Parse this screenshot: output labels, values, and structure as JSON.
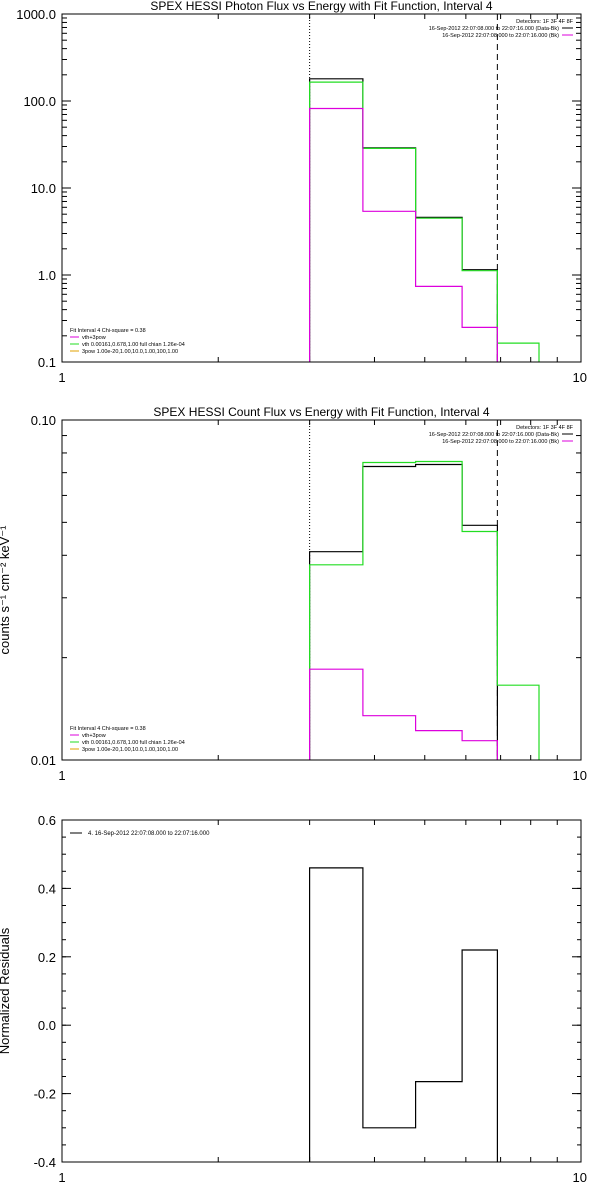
{
  "colors": {
    "black": "#000000",
    "magenta": "#dd00dd",
    "green": "#22dd22",
    "orange": "#e0a000"
  },
  "chart_data": [
    {
      "type": "line",
      "title": "SPEX HESSI Photon Flux vs Energy with Fit Function, Interval 4",
      "xlabel": "",
      "ylabel": "",
      "xscale": "log",
      "yscale": "log",
      "xlim": [
        1,
        10
      ],
      "ylim": [
        0.1,
        1000
      ],
      "x_ticks": [
        1,
        10
      ],
      "x_tick_labels": [
        "1",
        "10"
      ],
      "y_ticks": [
        0.1,
        1,
        10,
        100,
        1000
      ],
      "y_tick_labels": [
        "0.1",
        "1.0",
        "10.0",
        "100.0",
        "1000.0"
      ],
      "vlines": [
        {
          "x": 3.0,
          "style": "dotted"
        },
        {
          "x": 6.9,
          "style": "dashed"
        }
      ],
      "legend_top": {
        "placement": "top-right",
        "lines": [
          {
            "text": "Detectors: 1F 3F 4F 8F",
            "color": ""
          },
          {
            "text": "16-Sep-2012 22:07:08.000 to 22:07:16.000 (Data-Bk)",
            "color": "#000000"
          },
          {
            "text": "16-Sep-2012 22:07:08.000 to 22:07:16.000 (Bk)",
            "color": "#dd00dd"
          }
        ]
      },
      "legend_bottom": {
        "placement": "bottom-left",
        "lines": [
          {
            "text": "Fit Interval 4   Chi-square = 0.38",
            "color": ""
          },
          {
            "text": "vth+3pow",
            "color": "#dd00dd"
          },
          {
            "text": "vth 0.00161,0.678,1.00   full chian 1.26e-04",
            "color": "#22dd22"
          },
          {
            "text": "3pow 1.00e-20,1.00,10.0,1.00,100,1.00",
            "color": "#e0a000"
          }
        ]
      },
      "series": [
        {
          "color": "#000000",
          "edges": [
            3.0,
            3.8,
            4.8,
            5.9,
            6.9
          ],
          "values": [
            180,
            29,
            4.6,
            1.15
          ]
        },
        {
          "color": "#22dd22",
          "edges": [
            3.0,
            3.8,
            4.8,
            5.9,
            6.9,
            8.3
          ],
          "values": [
            165,
            28.5,
            4.5,
            1.12,
            0.165
          ]
        },
        {
          "color": "#dd00dd",
          "edges": [
            3.0,
            3.8,
            4.8,
            5.9,
            6.9
          ],
          "values": [
            82,
            5.4,
            0.74,
            0.25
          ]
        }
      ]
    },
    {
      "type": "line",
      "title": "SPEX HESSI Count Flux vs Energy with Fit Function, Interval 4",
      "xlabel": "",
      "ylabel": "counts s⁻¹ cm⁻² keV⁻¹",
      "xscale": "log",
      "yscale": "log",
      "xlim": [
        1,
        10
      ],
      "ylim": [
        0.01,
        0.1
      ],
      "x_ticks": [
        1,
        10
      ],
      "x_tick_labels": [
        "1",
        "10"
      ],
      "y_ticks": [
        0.01,
        0.1
      ],
      "y_tick_labels": [
        "0.01",
        "0.10"
      ],
      "vlines": [
        {
          "x": 3.0,
          "style": "dotted"
        },
        {
          "x": 6.9,
          "style": "dashed"
        }
      ],
      "legend_top": {
        "placement": "top-right",
        "lines": [
          {
            "text": "Detectors: 1F 3F 4F 8F",
            "color": ""
          },
          {
            "text": "16-Sep-2012 22:07:08.000 to 22:07:16.000 (Data-Bk)",
            "color": "#000000"
          },
          {
            "text": "16-Sep-2012 22:07:08.000 to 22:07:16.000 (Bk)",
            "color": "#dd00dd"
          }
        ]
      },
      "legend_bottom": {
        "placement": "bottom-left",
        "lines": [
          {
            "text": "Fit Interval 4   Chi-square = 0.38",
            "color": ""
          },
          {
            "text": "vth+3pow",
            "color": "#dd00dd"
          },
          {
            "text": "vth 0.00161,0.678,1.00   full chian 1.26e-04",
            "color": "#22dd22"
          },
          {
            "text": "3pow 1.00e-20,1.00,10.0,1.00,100,1.00",
            "color": "#e0a000"
          }
        ]
      },
      "series": [
        {
          "color": "#000000",
          "edges": [
            3.0,
            3.8,
            4.8,
            5.9,
            6.9
          ],
          "values": [
            0.041,
            0.073,
            0.074,
            0.049
          ]
        },
        {
          "color": "#22dd22",
          "edges": [
            3.0,
            3.8,
            4.8,
            5.9,
            6.9,
            8.3
          ],
          "values": [
            0.0375,
            0.075,
            0.0755,
            0.047,
            0.0166
          ]
        },
        {
          "color": "#dd00dd",
          "edges": [
            3.0,
            3.8,
            4.8,
            5.9,
            6.9
          ],
          "values": [
            0.0185,
            0.0135,
            0.0122,
            0.0114
          ]
        }
      ]
    },
    {
      "type": "line",
      "title": "",
      "xlabel": "",
      "ylabel": "Normalized Residuals",
      "xscale": "log",
      "yscale": "linear",
      "xlim": [
        1,
        10
      ],
      "ylim": [
        -0.4,
        0.6
      ],
      "x_ticks": [
        1,
        10
      ],
      "x_tick_labels": [
        "1",
        "10"
      ],
      "y_ticks": [
        -0.4,
        -0.2,
        0.0,
        0.2,
        0.4,
        0.6
      ],
      "y_tick_labels": [
        "-0.4",
        "-0.2",
        "0.0",
        "0.2",
        "0.4",
        "0.6"
      ],
      "vlines": [],
      "legend_top": {
        "placement": "top-left",
        "lines": [
          {
            "text": "4. 16-Sep-2012 22:07:08.000 to 22:07:16.000",
            "color": "#000000"
          }
        ]
      },
      "legend_bottom": {
        "placement": "bottom-left",
        "lines": []
      },
      "series": [
        {
          "color": "#000000",
          "edges": [
            3.0,
            3.8,
            4.8,
            5.9,
            6.9
          ],
          "values": [
            0.46,
            -0.3,
            -0.165,
            0.22
          ]
        }
      ]
    }
  ]
}
